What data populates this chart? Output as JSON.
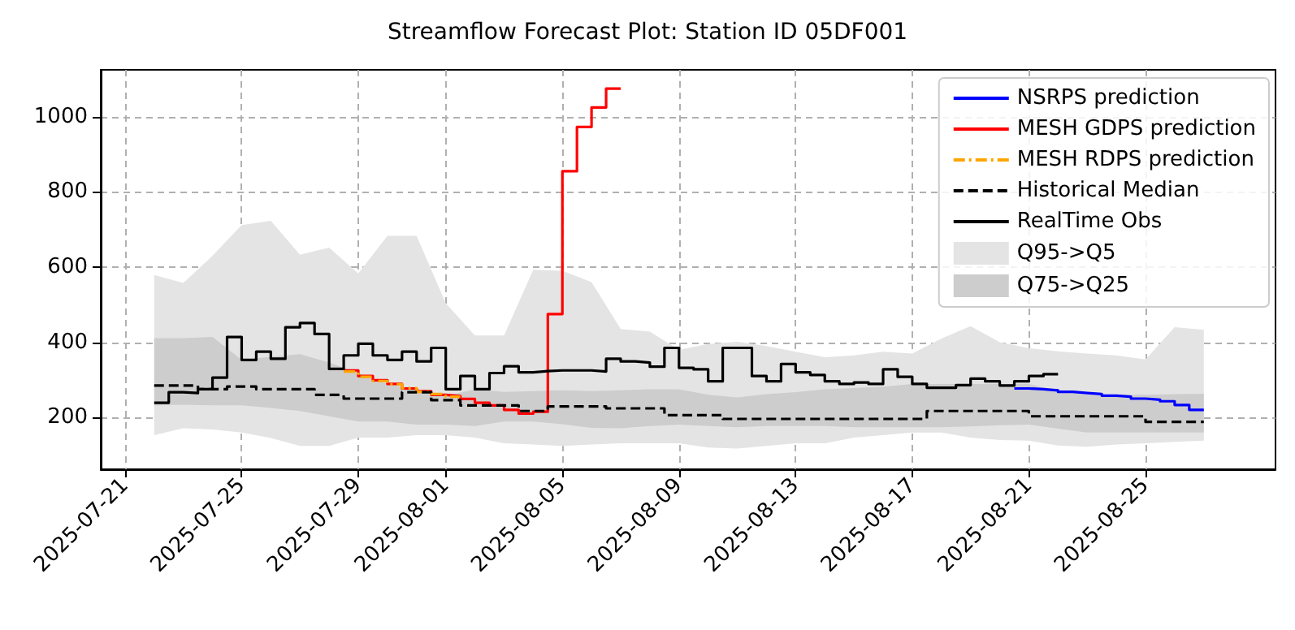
{
  "chart_data": {
    "type": "step",
    "title": "Streamflow Forecast Plot: Station ID 05DF001",
    "xlim": [
      "2025-07-20T04:00",
      "2025-08-29T11:00"
    ],
    "xticks": [
      "2025-07-21",
      "2025-07-25",
      "2025-07-29",
      "2025-08-01",
      "2025-08-05",
      "2025-08-09",
      "2025-08-13",
      "2025-08-17",
      "2025-08-21",
      "2025-08-25"
    ],
    "ylim": [
      62,
      1125
    ],
    "yticks": [
      200,
      400,
      600,
      800,
      1000
    ],
    "grid": true,
    "legend": "top right",
    "marker": "none",
    "series": [
      {
        "name": "NSRPS prediction",
        "color": "#0000ff",
        "line_style": "solid",
        "x": [
          "2025-08-20T12:00",
          "2025-08-21",
          "2025-08-21T12:00",
          "2025-08-22",
          "2025-08-22T12:00",
          "2025-08-23",
          "2025-08-23T12:00",
          "2025-08-24",
          "2025-08-24T12:00",
          "2025-08-25",
          "2025-08-25T12:00",
          "2025-08-26",
          "2025-08-26T12:00",
          "2025-08-27"
        ],
        "values": [
          277,
          275,
          272,
          268,
          265,
          262,
          258,
          255,
          250,
          247,
          243,
          233,
          220,
          220
        ]
      },
      {
        "name": "MESH GDPS prediction",
        "color": "#ff0000",
        "line_style": "solid",
        "x": [
          "2025-07-28T12:00",
          "2025-07-29",
          "2025-07-29T12:00",
          "2025-07-30",
          "2025-07-30T12:00",
          "2025-07-31",
          "2025-07-31T12:00",
          "2025-08-01",
          "2025-08-01T12:00",
          "2025-08-02",
          "2025-08-02T12:00",
          "2025-08-03",
          "2025-08-03T12:00",
          "2025-08-04",
          "2025-08-04T12:00",
          "2025-08-05",
          "2025-08-05T12:00",
          "2025-08-06",
          "2025-08-06T12:00",
          "2025-08-07"
        ],
        "values": [
          325,
          310,
          299,
          289,
          277,
          270,
          260,
          257,
          249,
          239,
          232,
          220,
          210,
          215,
          475,
          855,
          973,
          1025,
          1075,
          1075
        ]
      },
      {
        "name": "MESH RDPS prediction",
        "color": "#ffa500",
        "line_style": "dashdot",
        "x": [
          "2025-07-28T12:00",
          "2025-07-29",
          "2025-07-29T12:00",
          "2025-07-30",
          "2025-07-30T12:00",
          "2025-07-31",
          "2025-07-31T12:00",
          "2025-08-01",
          "2025-08-01T12:00"
        ],
        "values": [
          322,
          308,
          297,
          288,
          278,
          268,
          262,
          255,
          255
        ]
      },
      {
        "name": "Historical Median",
        "color": "#000000",
        "line_style": "dashed",
        "x": [
          "2025-07-22",
          "2025-07-23T12:00",
          "2025-07-24T12:00",
          "2025-07-25T12:00",
          "2025-07-27T12:00",
          "2025-07-28T12:00",
          "2025-07-30T12:00",
          "2025-07-31T12:00",
          "2025-08-01T12:00",
          "2025-08-03T12:00",
          "2025-08-04T12:00",
          "2025-08-06T12:00",
          "2025-08-08T12:00",
          "2025-08-10T12:00",
          "2025-08-17T12:00",
          "2025-08-21",
          "2025-08-25",
          "2025-08-27"
        ],
        "values": [
          285,
          275,
          282,
          275,
          260,
          250,
          267,
          246,
          232,
          217,
          229,
          224,
          206,
          196,
          217,
          203,
          188,
          188
        ]
      },
      {
        "name": "RealTime Obs",
        "color": "#000000",
        "line_style": "solid",
        "x": [
          "2025-07-22",
          "2025-07-22T12:00",
          "2025-07-23",
          "2025-07-23T12:00",
          "2025-07-24",
          "2025-07-24T12:00",
          "2025-07-25",
          "2025-07-25T12:00",
          "2025-07-26",
          "2025-07-26T12:00",
          "2025-07-27",
          "2025-07-27T12:00",
          "2025-07-28",
          "2025-07-28T12:00",
          "2025-07-29",
          "2025-07-29T12:00",
          "2025-07-30",
          "2025-07-30T12:00",
          "2025-07-31",
          "2025-07-31T12:00",
          "2025-08-01",
          "2025-08-01T12:00",
          "2025-08-02",
          "2025-08-02T12:00",
          "2025-08-03",
          "2025-08-03T12:00",
          "2025-08-04",
          "2025-08-04T12:00",
          "2025-08-05",
          "2025-08-05T12:00",
          "2025-08-06",
          "2025-08-06T12:00",
          "2025-08-07",
          "2025-08-07T12:00",
          "2025-08-08",
          "2025-08-08T12:00",
          "2025-08-09",
          "2025-08-09T12:00",
          "2025-08-10",
          "2025-08-10T12:00",
          "2025-08-11",
          "2025-08-11T12:00",
          "2025-08-12",
          "2025-08-12T12:00",
          "2025-08-13",
          "2025-08-13T12:00",
          "2025-08-14",
          "2025-08-14T12:00",
          "2025-08-15",
          "2025-08-15T12:00",
          "2025-08-16",
          "2025-08-16T12:00",
          "2025-08-17",
          "2025-08-17T12:00",
          "2025-08-18",
          "2025-08-18T12:00",
          "2025-08-19",
          "2025-08-19T12:00",
          "2025-08-20",
          "2025-08-20T12:00",
          "2025-08-21",
          "2025-08-21T12:00",
          "2025-08-22"
        ],
        "values": [
          239,
          267,
          265,
          275,
          306,
          414,
          353,
          375,
          356,
          440,
          451,
          422,
          329,
          365,
          396,
          365,
          353,
          375,
          349,
          385,
          275,
          310,
          275,
          318,
          336,
          320,
          323,
          325,
          325,
          325,
          322,
          356,
          349,
          346,
          335,
          385,
          332,
          328,
          296,
          385,
          385,
          310,
          296,
          342,
          320,
          313,
          296,
          289,
          293,
          289,
          328,
          308,
          289,
          279,
          279,
          286,
          303,
          296,
          285,
          296,
          310,
          315,
          315
        ]
      },
      {
        "name": "Q95->Q5",
        "type": "area",
        "color": "#e4e4e4",
        "x": [
          "2025-07-22",
          "2025-07-23",
          "2025-07-24",
          "2025-07-25",
          "2025-07-26",
          "2025-07-27",
          "2025-07-28",
          "2025-07-29",
          "2025-07-30",
          "2025-07-31",
          "2025-08-01",
          "2025-08-02",
          "2025-08-03",
          "2025-08-04",
          "2025-08-05",
          "2025-08-06",
          "2025-08-07",
          "2025-08-08",
          "2025-08-09",
          "2025-08-10",
          "2025-08-11",
          "2025-08-12",
          "2025-08-13",
          "2025-08-14",
          "2025-08-15",
          "2025-08-16",
          "2025-08-17",
          "2025-08-18",
          "2025-08-19",
          "2025-08-20",
          "2025-08-21",
          "2025-08-22",
          "2025-08-23",
          "2025-08-24",
          "2025-08-25",
          "2025-08-26",
          "2025-08-27"
        ],
        "values": [
          null,
          null,
          null,
          null,
          null,
          null,
          null,
          null,
          null,
          null,
          null,
          null,
          null,
          null,
          null,
          null,
          null,
          null,
          null,
          null,
          null,
          null,
          null,
          null,
          null,
          null,
          null,
          null,
          null,
          null,
          null,
          null,
          null,
          null,
          null,
          null,
          null
        ],
        "upper": [
          579,
          558,
          630,
          712,
          723,
          633,
          652,
          583,
          683,
          683,
          504,
          418,
          418,
          593,
          590,
          560,
          435,
          428,
          380,
          395,
          401,
          390,
          375,
          360,
          365,
          375,
          370,
          410,
          443,
          400,
          384,
          376,
          370,
          365,
          354,
          440,
          433
        ],
        "lower": [
          153,
          171,
          168,
          160,
          145,
          124,
          124,
          146,
          146,
          153,
          153,
          146,
          131,
          128,
          124,
          128,
          131,
          131,
          131,
          120,
          117,
          124,
          131,
          131,
          146,
          153,
          160,
          160,
          146,
          140,
          138,
          125,
          122,
          128,
          131,
          135,
          138
        ]
      },
      {
        "name": "Q75->Q25",
        "type": "area",
        "color": "#cdcdcd",
        "x": [
          "2025-07-22",
          "2025-07-23",
          "2025-07-24",
          "2025-07-25",
          "2025-07-26",
          "2025-07-27",
          "2025-07-28",
          "2025-07-29",
          "2025-07-30",
          "2025-07-31",
          "2025-08-01",
          "2025-08-02",
          "2025-08-03",
          "2025-08-04",
          "2025-08-05",
          "2025-08-06",
          "2025-08-07",
          "2025-08-08",
          "2025-08-09",
          "2025-08-10",
          "2025-08-11",
          "2025-08-12",
          "2025-08-13",
          "2025-08-14",
          "2025-08-15",
          "2025-08-16",
          "2025-08-17",
          "2025-08-18",
          "2025-08-19",
          "2025-08-20",
          "2025-08-21",
          "2025-08-22",
          "2025-08-23",
          "2025-08-24",
          "2025-08-25",
          "2025-08-26",
          "2025-08-27"
        ],
        "values": [
          null,
          null,
          null,
          null,
          null,
          null,
          null,
          null,
          null,
          null,
          null,
          null,
          null,
          null,
          null,
          null,
          null,
          null,
          null,
          null,
          null,
          null,
          null,
          null,
          null,
          null,
          null,
          null,
          null,
          null,
          null,
          null,
          null,
          null,
          null,
          null,
          null
        ],
        "upper": [
          411,
          411,
          414,
          353,
          361,
          368,
          346,
          318,
          289,
          275,
          257,
          275,
          268,
          270,
          272,
          270,
          272,
          275,
          275,
          260,
          253,
          262,
          267,
          275,
          278,
          282,
          289,
          289,
          289,
          289,
          289,
          270,
          260,
          260,
          260,
          262,
          263
        ],
        "lower": [
          232,
          234,
          232,
          232,
          225,
          217,
          203,
          189,
          189,
          181,
          181,
          177,
          189,
          189,
          182,
          172,
          171,
          177,
          181,
          177,
          174,
          177,
          177,
          177,
          174,
          174,
          174,
          174,
          176,
          179,
          181,
          170,
          160,
          160,
          160,
          160,
          160
        ]
      }
    ]
  }
}
